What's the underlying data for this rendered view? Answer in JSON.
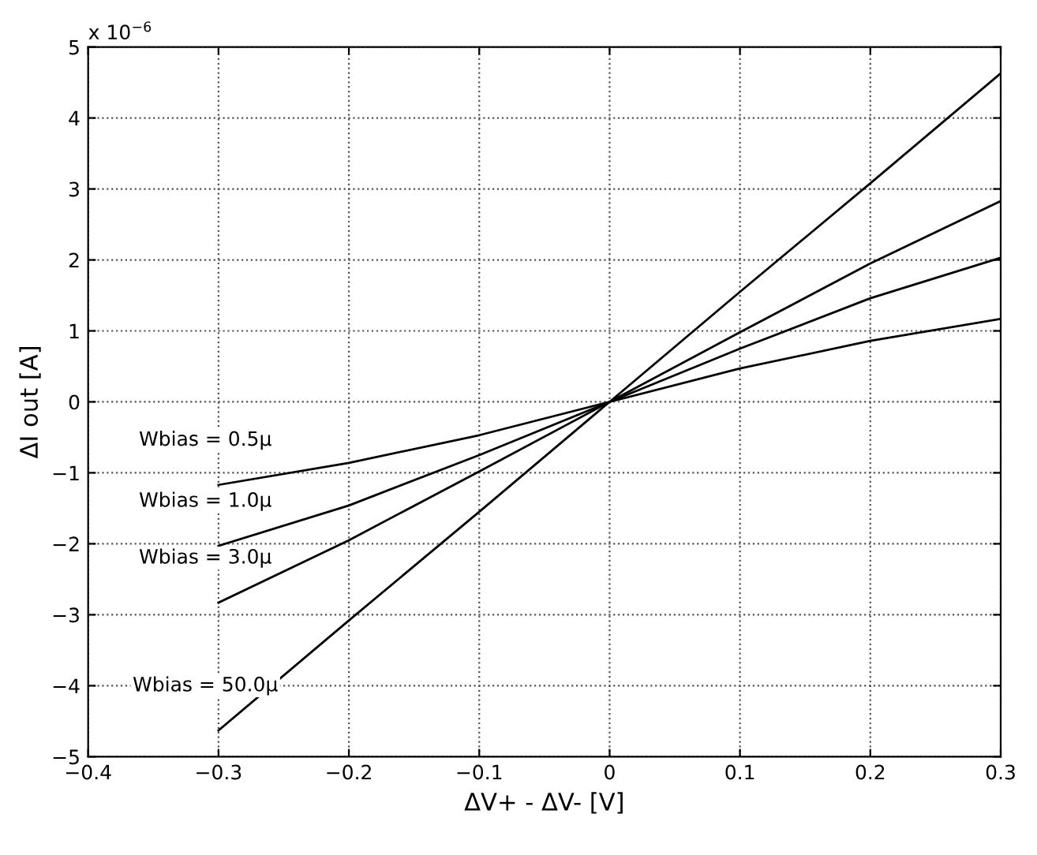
{
  "chart_data": {
    "type": "line",
    "xlabel": "ΔV+ - ΔV- [V]",
    "ylabel": "ΔI out [A]",
    "annotations": [
      "x 10$^{−6}$"
    ],
    "x": [
      -0.3,
      -0.2,
      -0.1,
      0,
      0.1,
      0.2,
      0.3
    ],
    "series": [
      {
        "name": "Wbias = 0.5μ",
        "color": "#000000",
        "values": [
          -1.17,
          -0.86,
          -0.47,
          0,
          0.47,
          0.86,
          1.17
        ]
      },
      {
        "name": "Wbias = 1.0μ",
        "color": "#000000",
        "values": [
          -2.03,
          -1.46,
          -0.75,
          0,
          0.75,
          1.46,
          2.03
        ]
      },
      {
        "name": "Wbias = 3.0μ",
        "color": "#000000",
        "values": [
          -2.83,
          -1.95,
          -0.98,
          0,
          0.98,
          1.95,
          2.83
        ]
      },
      {
        "name": "Wbias = 50.0μ",
        "color": "#000000",
        "values": [
          -4.63,
          -3.08,
          -1.55,
          0,
          1.55,
          3.08,
          4.63
        ]
      }
    ],
    "xlim": [
      -0.4,
      0.3
    ],
    "xticks": [
      {
        "value": -0.4,
        "label": "−0.4"
      },
      {
        "value": -0.3,
        "label": "−0.3"
      },
      {
        "value": -0.2,
        "label": "−0.2"
      },
      {
        "value": -0.1,
        "label": "−0.1"
      },
      0,
      0.1,
      0.2,
      0.3
    ],
    "ylim": [
      -5,
      5
    ],
    "yticks": [
      {
        "value": -5,
        "label": "−5"
      },
      {
        "value": -4,
        "label": "−4"
      },
      {
        "value": -3,
        "label": "−3"
      },
      {
        "value": -2,
        "label": "−2"
      },
      {
        "value": -1,
        "label": "−1"
      },
      0,
      1,
      2,
      3,
      4,
      5
    ],
    "grid": true,
    "legend": false,
    "marker": "none",
    "line_style": "solid"
  }
}
